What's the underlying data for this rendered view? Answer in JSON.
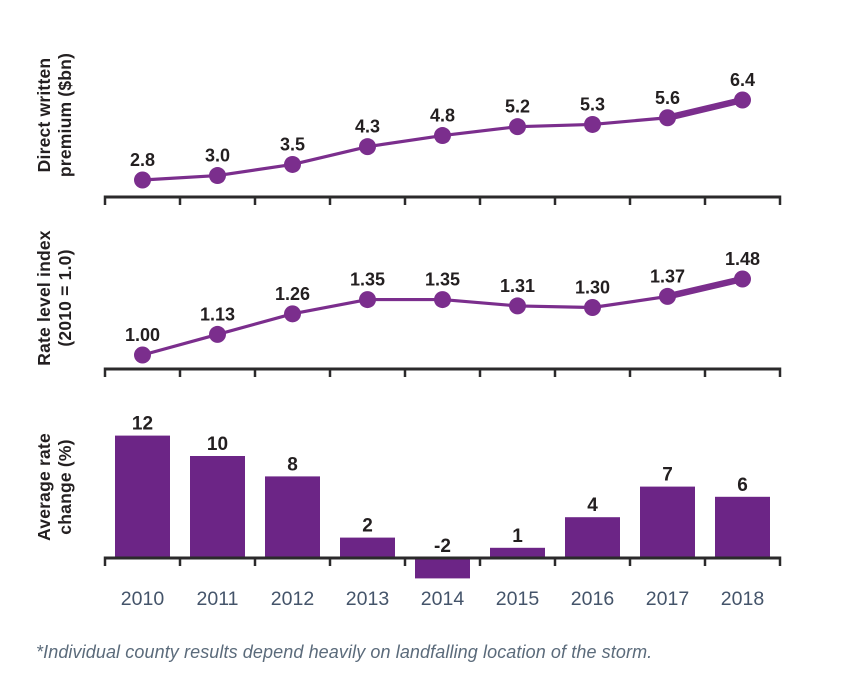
{
  "footnote": "*Individual county results depend heavily on landfalling location of the storm.",
  "colors": {
    "line_purple": "#7B2E8D",
    "bar_purple": "#6C2586",
    "axis": "#2B2A2B",
    "data_label": "#231F20",
    "year_label": "#44546A",
    "footnote": "#5B6B7B"
  },
  "chart_data": [
    {
      "type": "line",
      "ylabel": "Direct written premium ($bn)",
      "ylabel_lines": [
        "Direct written",
        "premium ($bn)"
      ],
      "categories": [
        "2010",
        "2011",
        "2012",
        "2013",
        "2014",
        "2015",
        "2016",
        "2017",
        "2018"
      ],
      "values": [
        2.8,
        3.0,
        3.5,
        4.3,
        4.8,
        5.2,
        5.3,
        5.6,
        6.4
      ],
      "value_labels": [
        "2.8",
        "3.0",
        "3.5",
        "4.3",
        "4.8",
        "5.2",
        "5.3",
        "5.6",
        "6.4"
      ],
      "ylim": [
        2.8,
        6.4
      ],
      "grid": false,
      "legend": "none"
    },
    {
      "type": "line",
      "ylabel": "Rate level index (2010 = 1.0)",
      "ylabel_lines": [
        "Rate level index",
        "(2010 = 1.0)"
      ],
      "categories": [
        "2010",
        "2011",
        "2012",
        "2013",
        "2014",
        "2015",
        "2016",
        "2017",
        "2018"
      ],
      "values": [
        1.0,
        1.13,
        1.26,
        1.35,
        1.35,
        1.31,
        1.3,
        1.37,
        1.48
      ],
      "value_labels": [
        "1.00",
        "1.13",
        "1.26",
        "1.35",
        "1.35",
        "1.31",
        "1.30",
        "1.37",
        "1.48"
      ],
      "ylim": [
        1.0,
        1.48
      ],
      "grid": false,
      "legend": "none"
    },
    {
      "type": "bar",
      "ylabel": "Average rate change (%)",
      "ylabel_lines": [
        "Average rate",
        "change (%)"
      ],
      "categories": [
        "2010",
        "2011",
        "2012",
        "2013",
        "2014",
        "2015",
        "2016",
        "2017",
        "2018"
      ],
      "values": [
        12,
        10,
        8,
        2,
        -2,
        1,
        4,
        7,
        6
      ],
      "value_labels": [
        "12",
        "10",
        "8",
        "2",
        "-2",
        "1",
        "4",
        "7",
        "6"
      ],
      "x_tick_labels_visible": true,
      "grid": false,
      "legend": "none"
    }
  ]
}
